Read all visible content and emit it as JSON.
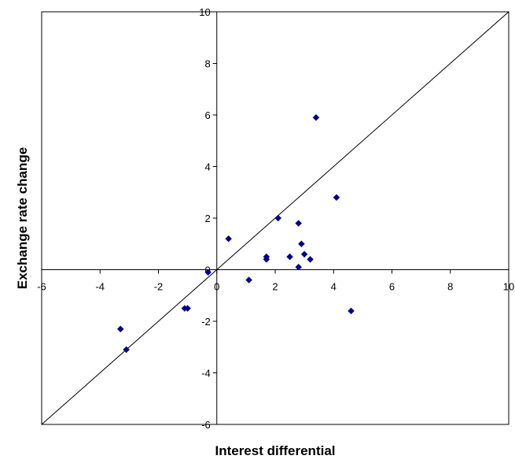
{
  "chart_data": {
    "type": "scatter",
    "title": "",
    "xlabel": "Interest differential",
    "ylabel": "Exchange rate change",
    "xlim": [
      -6,
      10
    ],
    "ylim": [
      -6,
      10
    ],
    "xticks": [
      -6,
      -4,
      -2,
      0,
      2,
      4,
      6,
      8,
      10
    ],
    "yticks": [
      -6,
      -4,
      -2,
      0,
      2,
      4,
      6,
      8,
      10
    ],
    "grid": false,
    "legend": "none",
    "marker": "diamond",
    "marker_color": "#00007f",
    "reference_line": {
      "from": [
        -6,
        -6
      ],
      "to": [
        10,
        10
      ]
    },
    "series": [
      {
        "points": [
          {
            "x": -3.3,
            "y": -2.3
          },
          {
            "x": -3.1,
            "y": -3.1
          },
          {
            "x": -1.1,
            "y": -1.5
          },
          {
            "x": -1.0,
            "y": -1.5
          },
          {
            "x": -0.3,
            "y": -0.1
          },
          {
            "x": 0.4,
            "y": 1.2
          },
          {
            "x": 1.1,
            "y": -0.4
          },
          {
            "x": 1.7,
            "y": 0.5
          },
          {
            "x": 1.7,
            "y": 0.4
          },
          {
            "x": 2.1,
            "y": 2.0
          },
          {
            "x": 2.5,
            "y": 0.5
          },
          {
            "x": 2.8,
            "y": 1.8
          },
          {
            "x": 2.8,
            "y": 0.1
          },
          {
            "x": 2.9,
            "y": 1.0
          },
          {
            "x": 3.0,
            "y": 0.6
          },
          {
            "x": 3.2,
            "y": 0.4
          },
          {
            "x": 3.4,
            "y": 5.9
          },
          {
            "x": 4.1,
            "y": 2.8
          },
          {
            "x": 4.6,
            "y": -1.6
          }
        ]
      }
    ]
  }
}
